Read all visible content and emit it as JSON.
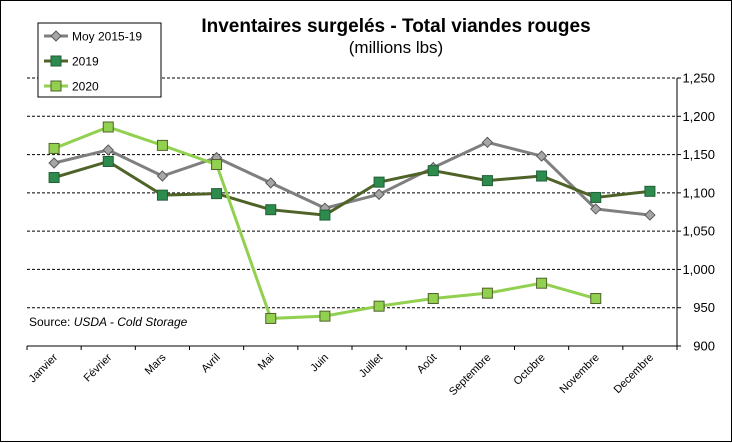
{
  "chart_data": {
    "type": "line",
    "title": "Inventaires surgelés - Total viandes rouges",
    "subtitle": "(millions lbs)",
    "categories": [
      "Janvier",
      "Février",
      "Mars",
      "Avril",
      "Mai",
      "Juin",
      "Juillet",
      "Août",
      "Septembre",
      "Octobre",
      "Novembre",
      "Decembre"
    ],
    "ylim": [
      900,
      1250
    ],
    "yticks": [
      900,
      950,
      1000,
      1050,
      1100,
      1150,
      1200,
      1250
    ],
    "ytick_labels": [
      "900",
      "950",
      "1,000",
      "1,050",
      "1,100",
      "1,150",
      "1,200",
      "1,250"
    ],
    "grid": "horizontal dashed",
    "legend_position": "top-left",
    "series": [
      {
        "name": "Moy 2015-19",
        "color": "#7f7f7f",
        "marker": "diamond",
        "values": [
          1139,
          1156,
          1122,
          1146,
          1113,
          1080,
          1098,
          1133,
          1166,
          1148,
          1079,
          1071
        ]
      },
      {
        "name": "2019",
        "color": "#2e8b4e",
        "line_color": "#4f6228",
        "marker": "square",
        "values": [
          1120,
          1141,
          1097,
          1099,
          1078,
          1071,
          1114,
          1129,
          1116,
          1122,
          1094,
          1102
        ]
      },
      {
        "name": "2020",
        "color": "#92d050",
        "marker": "square",
        "values": [
          1158,
          1186,
          1162,
          1137,
          936,
          939,
          952,
          962,
          969,
          982,
          962,
          null
        ]
      }
    ],
    "source_prefix": "Source: ",
    "source_italic": "USDA - Cold Storage"
  }
}
